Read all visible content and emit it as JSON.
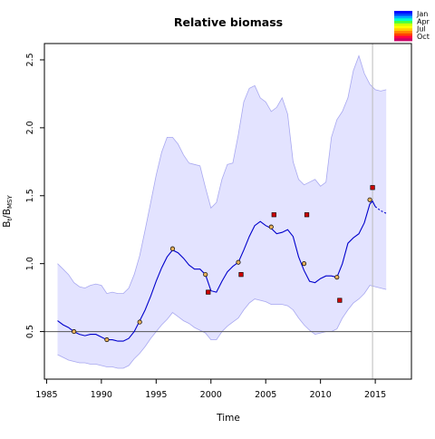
{
  "chart_data": {
    "type": "line",
    "title": "Relative biomass",
    "xlabel": "Time",
    "ylabel_main": "B",
    "ylabel_sub1": "t",
    "ylabel_sep": "/B",
    "ylabel_sub2": "MSY",
    "xlim": [
      1984.8,
      2018.3
    ],
    "ylim": [
      0.15,
      2.62
    ],
    "x_ticks": [
      1985,
      1990,
      1995,
      2000,
      2005,
      2010,
      2015
    ],
    "y_ticks": [
      0.5,
      1.0,
      1.5,
      2.0,
      2.5
    ],
    "x_tick_labels": [
      "1985",
      "1990",
      "1995",
      "2000",
      "2005",
      "2010",
      "2015"
    ],
    "y_tick_labels": [
      "0.5",
      "1.0",
      "1.5",
      "2.0",
      "2.5"
    ],
    "reference_line_y": 0.5,
    "last_observation_x": 2014.75,
    "colors": {
      "median": "#0000cc",
      "band_fill": "#e3e3ff",
      "band_edge": "#a8a8f0",
      "reference": "#555555",
      "vline": "#bbbbbb",
      "index_point": "#cc0000"
    },
    "series": [
      {
        "kind": "median",
        "x": [
          1986.0,
          1986.5,
          1987.0,
          1987.5,
          1988.0,
          1988.5,
          1989.0,
          1989.5,
          1990.0,
          1990.5,
          1991.0,
          1991.5,
          1992.0,
          1992.5,
          1993.0,
          1993.5,
          1994.0,
          1994.5,
          1995.0,
          1995.5,
          1996.0,
          1996.5,
          1997.0,
          1997.5,
          1998.0,
          1998.5,
          1999.0,
          1999.5,
          2000.0,
          2000.5,
          2001.0,
          2001.5,
          2002.0,
          2002.5,
          2003.0,
          2003.5,
          2004.0,
          2004.5,
          2005.0,
          2005.5,
          2006.0,
          2006.5,
          2007.0,
          2007.5,
          2008.0,
          2008.5,
          2009.0,
          2009.5,
          2010.0,
          2010.5,
          2011.0,
          2011.5,
          2012.0,
          2012.5,
          2013.0,
          2013.5,
          2014.0,
          2014.5,
          2014.75,
          2015.0
        ],
        "y": [
          0.58,
          0.55,
          0.53,
          0.5,
          0.48,
          0.47,
          0.48,
          0.48,
          0.46,
          0.44,
          0.44,
          0.43,
          0.43,
          0.45,
          0.5,
          0.58,
          0.66,
          0.76,
          0.87,
          0.97,
          1.05,
          1.1,
          1.08,
          1.04,
          0.99,
          0.96,
          0.96,
          0.92,
          0.8,
          0.79,
          0.87,
          0.94,
          0.98,
          1.01,
          1.1,
          1.2,
          1.28,
          1.31,
          1.28,
          1.26,
          1.22,
          1.23,
          1.25,
          1.2,
          1.05,
          0.95,
          0.87,
          0.86,
          0.89,
          0.91,
          0.91,
          0.9,
          1.0,
          1.15,
          1.19,
          1.22,
          1.3,
          1.44,
          1.46,
          1.42
        ]
      },
      {
        "kind": "projection",
        "x": [
          2015.0,
          2015.5,
          2016.0
        ],
        "y": [
          1.42,
          1.39,
          1.37
        ]
      },
      {
        "kind": "upper_band",
        "x": [
          1986.0,
          1986.5,
          1987.0,
          1987.5,
          1988.0,
          1988.5,
          1989.0,
          1989.5,
          1990.0,
          1990.5,
          1991.0,
          1991.5,
          1992.0,
          1992.5,
          1993.0,
          1993.5,
          1994.0,
          1994.5,
          1995.0,
          1995.5,
          1996.0,
          1996.5,
          1997.0,
          1997.5,
          1998.0,
          1998.5,
          1999.0,
          1999.5,
          2000.0,
          2000.5,
          2001.0,
          2001.5,
          2002.0,
          2002.5,
          2003.0,
          2003.5,
          2004.0,
          2004.5,
          2005.0,
          2005.5,
          2006.0,
          2006.5,
          2007.0,
          2007.5,
          2008.0,
          2008.5,
          2009.0,
          2009.5,
          2010.0,
          2010.5,
          2011.0,
          2011.5,
          2012.0,
          2012.5,
          2013.0,
          2013.5,
          2014.0,
          2014.5,
          2015.0,
          2015.5,
          2016.0
        ],
        "y": [
          1.0,
          0.96,
          0.92,
          0.86,
          0.83,
          0.82,
          0.84,
          0.85,
          0.84,
          0.78,
          0.79,
          0.78,
          0.78,
          0.82,
          0.92,
          1.06,
          1.25,
          1.45,
          1.65,
          1.82,
          1.93,
          1.93,
          1.88,
          1.8,
          1.74,
          1.73,
          1.72,
          1.56,
          1.41,
          1.45,
          1.62,
          1.73,
          1.74,
          1.95,
          2.19,
          2.29,
          2.31,
          2.22,
          2.19,
          2.12,
          2.15,
          2.22,
          2.1,
          1.75,
          1.62,
          1.58,
          1.6,
          1.62,
          1.57,
          1.6,
          1.93,
          2.06,
          2.12,
          2.22,
          2.42,
          2.53,
          2.4,
          2.32,
          2.28,
          2.27,
          2.28
        ]
      },
      {
        "kind": "lower_band",
        "x": [
          1986.0,
          1986.5,
          1987.0,
          1987.5,
          1988.0,
          1988.5,
          1989.0,
          1989.5,
          1990.0,
          1990.5,
          1991.0,
          1991.5,
          1992.0,
          1992.5,
          1993.0,
          1993.5,
          1994.0,
          1994.5,
          1995.0,
          1995.5,
          1996.0,
          1996.5,
          1997.0,
          1997.5,
          1998.0,
          1998.5,
          1999.0,
          1999.5,
          2000.0,
          2000.5,
          2001.0,
          2001.5,
          2002.0,
          2002.5,
          2003.0,
          2003.5,
          2004.0,
          2004.5,
          2005.0,
          2005.5,
          2006.0,
          2006.5,
          2007.0,
          2007.5,
          2008.0,
          2008.5,
          2009.0,
          2009.5,
          2010.0,
          2010.5,
          2011.0,
          2011.5,
          2012.0,
          2012.5,
          2013.0,
          2013.5,
          2014.0,
          2014.5,
          2015.0,
          2015.5,
          2016.0
        ],
        "y": [
          0.33,
          0.31,
          0.29,
          0.28,
          0.27,
          0.27,
          0.26,
          0.26,
          0.25,
          0.24,
          0.24,
          0.23,
          0.23,
          0.25,
          0.3,
          0.34,
          0.39,
          0.45,
          0.5,
          0.55,
          0.59,
          0.64,
          0.61,
          0.58,
          0.56,
          0.53,
          0.51,
          0.49,
          0.44,
          0.44,
          0.5,
          0.54,
          0.57,
          0.6,
          0.66,
          0.71,
          0.74,
          0.73,
          0.72,
          0.7,
          0.7,
          0.7,
          0.69,
          0.66,
          0.6,
          0.55,
          0.51,
          0.48,
          0.49,
          0.5,
          0.5,
          0.52,
          0.6,
          0.66,
          0.71,
          0.74,
          0.78,
          0.84,
          0.83,
          0.82,
          0.81
        ]
      }
    ],
    "state_points": {
      "x": [
        1987.5,
        1990.5,
        1993.5,
        1996.5,
        1999.5,
        2002.5,
        2005.5,
        2008.5,
        2011.5,
        2014.5
      ],
      "y": [
        0.5,
        0.44,
        0.57,
        1.11,
        0.92,
        1.01,
        1.27,
        1.0,
        0.9,
        1.47
      ],
      "fill": "#e6b05c"
    },
    "index_points": {
      "x": [
        1999.75,
        2002.75,
        2005.75,
        2008.75,
        2011.75,
        2014.75
      ],
      "y": [
        0.79,
        0.92,
        1.36,
        1.36,
        0.73,
        1.56
      ]
    },
    "season_legend": {
      "labels": [
        "Jan",
        "Apr",
        "Jul",
        "Oct"
      ],
      "colors": [
        "#0000ff",
        "#0044ff",
        "#00aaff",
        "#00ffcc",
        "#44ff44",
        "#ccff00",
        "#ffff00",
        "#ffcc00",
        "#ff8800",
        "#ff4400",
        "#ff0044",
        "#cc0066"
      ]
    }
  }
}
